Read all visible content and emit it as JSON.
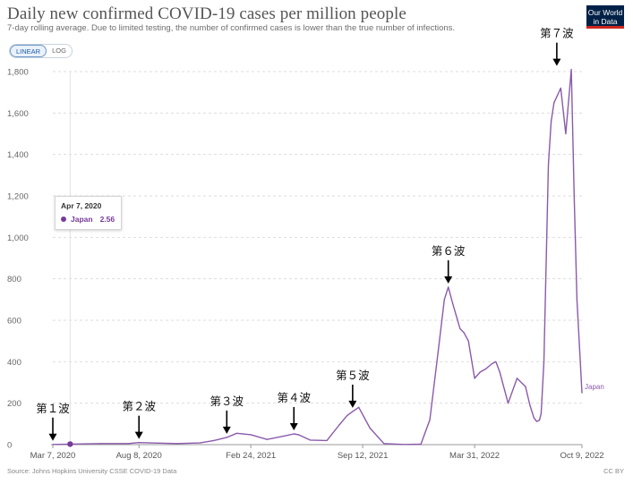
{
  "header": {
    "title": "Daily new confirmed COVID-19 cases per million people",
    "subtitle": "7-day rolling average. Due to limited testing, the number of confirmed cases is lower than the true number of infections.",
    "logo_line1": "Our World",
    "logo_line2": "in Data"
  },
  "controls": {
    "linear_label": "LINEAR",
    "log_label": "LOG",
    "active": "LINEAR"
  },
  "tooltip": {
    "date": "Apr 7, 2020",
    "series": "Japan",
    "value": "2.56"
  },
  "footer": {
    "source": "Source: Johns Hopkins University CSSE COVID-19 Data",
    "license": "CC BY"
  },
  "colors": {
    "series": "#8a5aab",
    "marker": "#763a9a",
    "grid": "#dddddd",
    "arrow": "#000000"
  },
  "chart_data": {
    "type": "line",
    "title": "Daily new confirmed COVID-19 cases per million people",
    "subtitle": "7-day rolling average. Due to limited testing, the number of confirmed cases is lower than the true number of infections.",
    "xlabel": "",
    "ylabel": "",
    "scale": "linear",
    "grid": "horizontal dashed",
    "ylim": [
      0,
      1800
    ],
    "yticks": [
      0,
      200,
      400,
      600,
      800,
      1000,
      1200,
      1400,
      1600,
      1800
    ],
    "ytick_labels": [
      "0",
      "200",
      "400",
      "600",
      "800",
      "1,000",
      "1,200",
      "1,400",
      "1,600",
      "1,800"
    ],
    "xlim": [
      "2020-03-07",
      "2022-10-09"
    ],
    "xticks": [
      "2020-03-07",
      "2020-08-08",
      "2021-02-24",
      "2021-09-12",
      "2022-03-31",
      "2022-10-09"
    ],
    "xtick_labels": [
      "Mar 7, 2020",
      "Aug 8, 2020",
      "Feb 24, 2021",
      "Sep 12, 2021",
      "Mar 31, 2022",
      "Oct 9, 2022"
    ],
    "series": [
      {
        "name": "Japan",
        "x": [
          "2020-03-07",
          "2020-04-07",
          "2020-06-01",
          "2020-07-20",
          "2020-08-08",
          "2020-08-28",
          "2020-10-15",
          "2020-11-25",
          "2020-12-20",
          "2021-01-12",
          "2021-01-30",
          "2021-02-24",
          "2021-03-25",
          "2021-04-25",
          "2021-05-12",
          "2021-05-20",
          "2021-06-10",
          "2021-07-10",
          "2021-08-01",
          "2021-08-15",
          "2021-08-25",
          "2021-09-05",
          "2021-09-25",
          "2021-10-20",
          "2021-11-25",
          "2021-12-25",
          "2022-01-10",
          "2022-01-25",
          "2022-02-05",
          "2022-02-12",
          "2022-02-20",
          "2022-03-05",
          "2022-03-12",
          "2022-03-20",
          "2022-03-31",
          "2022-04-10",
          "2022-04-20",
          "2022-05-01",
          "2022-05-08",
          "2022-05-15",
          "2022-05-30",
          "2022-06-15",
          "2022-06-30",
          "2022-07-08",
          "2022-07-15",
          "2022-07-20",
          "2022-07-25",
          "2022-07-28",
          "2022-08-02",
          "2022-08-05",
          "2022-08-10",
          "2022-08-15",
          "2022-08-20",
          "2022-09-01",
          "2022-09-10",
          "2022-09-20",
          "2022-09-25",
          "2022-09-30",
          "2022-10-09"
        ],
        "y": [
          1,
          2.56,
          5,
          5,
          10,
          8,
          5,
          8,
          20,
          35,
          55,
          48,
          25,
          42,
          52,
          48,
          22,
          20,
          95,
          140,
          160,
          180,
          80,
          5,
          1,
          2,
          120,
          450,
          700,
          760,
          680,
          560,
          540,
          500,
          320,
          350,
          365,
          390,
          400,
          350,
          200,
          320,
          280,
          190,
          130,
          112,
          118,
          150,
          400,
          760,
          1350,
          1560,
          1650,
          1720,
          1500,
          1810,
          1200,
          700,
          250
        ]
      }
    ],
    "annotations": [
      {
        "label": "第１波",
        "date": "2020-03-07"
      },
      {
        "label": "第２波",
        "date": "2020-08-08"
      },
      {
        "label": "第３波",
        "date": "2021-01-12"
      },
      {
        "label": "第４波",
        "date": "2021-05-12"
      },
      {
        "label": "第５波",
        "date": "2021-08-25"
      },
      {
        "label": "第６波",
        "date": "2022-02-12"
      },
      {
        "label": "第７波",
        "date": "2022-08-25"
      }
    ],
    "highlight_point": {
      "date": "2020-04-07",
      "value": 2.56
    }
  }
}
